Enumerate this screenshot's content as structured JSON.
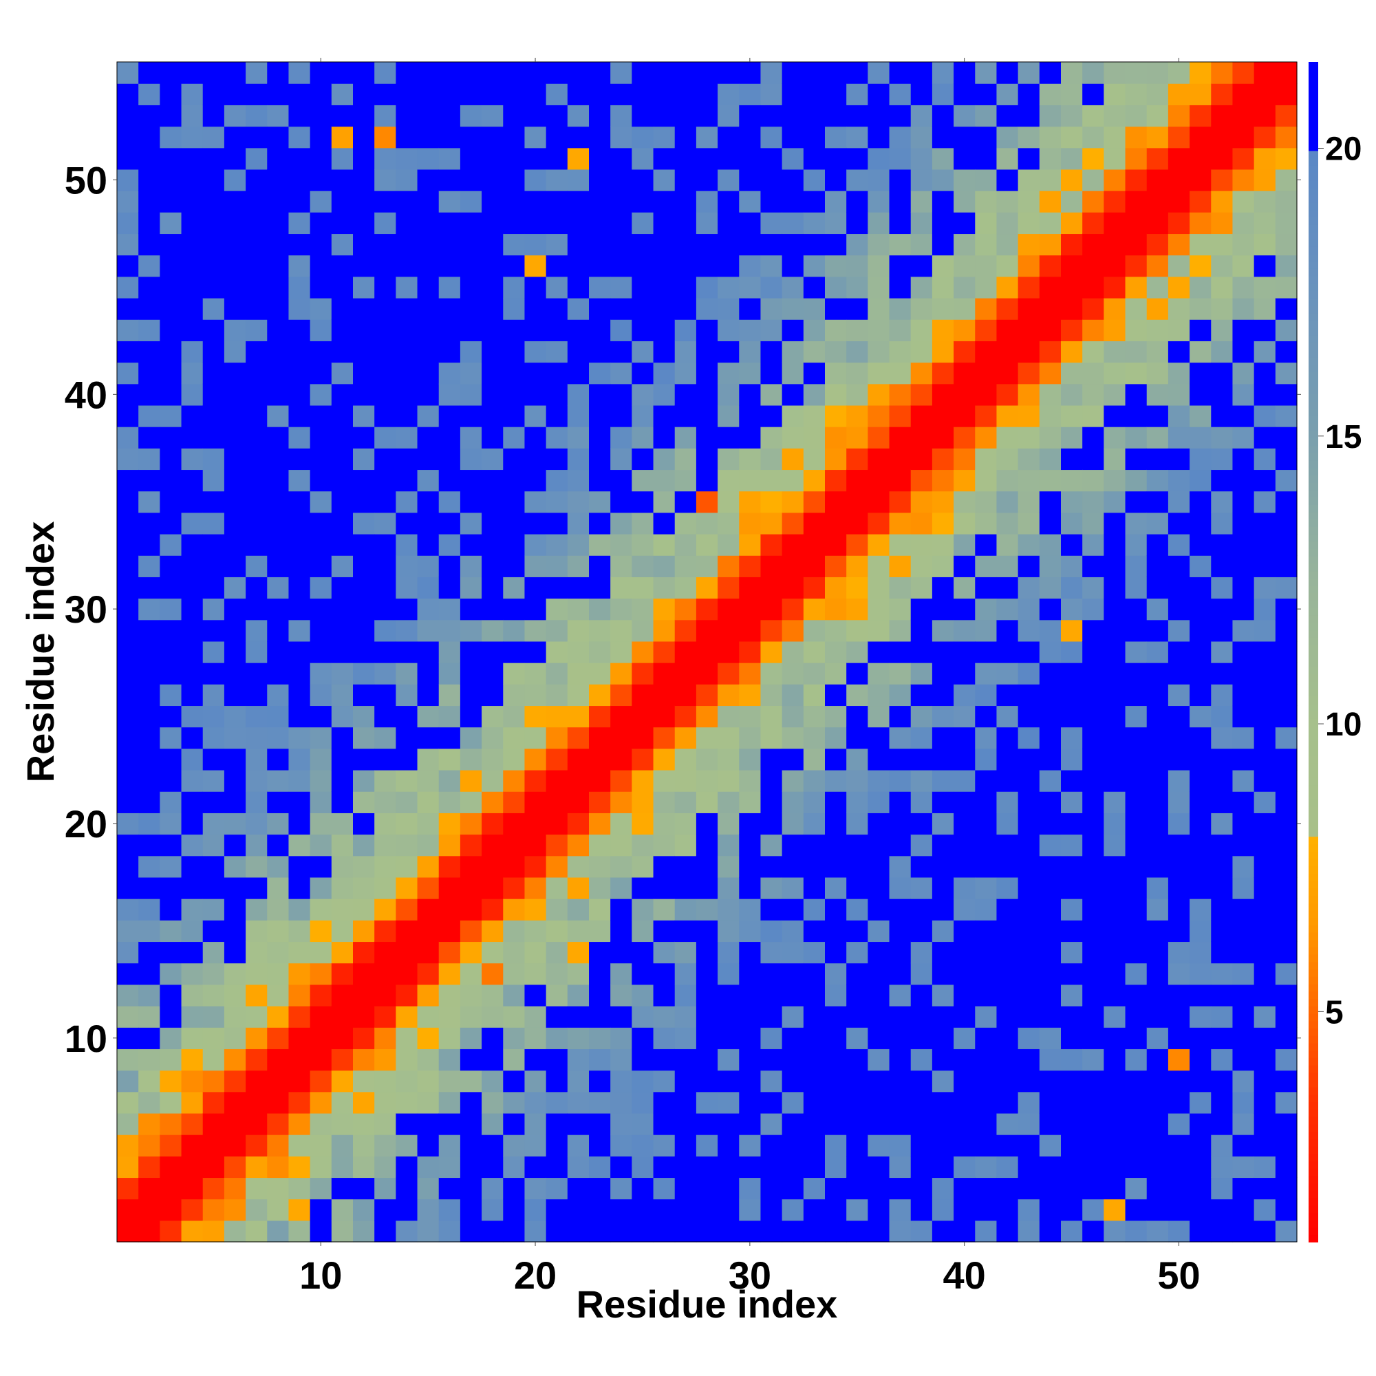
{
  "chart_data": {
    "type": "heatmap",
    "title": "",
    "xlabel": "Residue index",
    "ylabel": "Residue index",
    "n_residues": 55,
    "xlim": [
      1,
      55
    ],
    "ylim": [
      1,
      55
    ],
    "x_ticks": [
      10,
      20,
      30,
      40,
      50
    ],
    "y_ticks": [
      10,
      20,
      30,
      40,
      50
    ],
    "colorbar": {
      "ticks": [
        5,
        10,
        15,
        20
      ],
      "range": [
        1,
        21.5
      ],
      "stops": [
        {
          "value": 1.0,
          "color": "#ff0000"
        },
        {
          "value": 3.5,
          "color": "#ff3300"
        },
        {
          "value": 5.0,
          "color": "#ff6600"
        },
        {
          "value": 6.5,
          "color": "#ff9900"
        },
        {
          "value": 8.0,
          "color": "#ffb000"
        },
        {
          "value": 8.01,
          "color": "#a8c089"
        },
        {
          "value": 10.0,
          "color": "#a6c08c"
        },
        {
          "value": 12.5,
          "color": "#98b49a"
        },
        {
          "value": 15.0,
          "color": "#7a9fae"
        },
        {
          "value": 17.5,
          "color": "#6a93bd"
        },
        {
          "value": 20.0,
          "color": "#5a87c6"
        },
        {
          "value": 20.01,
          "color": "#0000ff"
        },
        {
          "value": 21.5,
          "color": "#0000ff"
        }
      ]
    },
    "grid": false,
    "cell_pattern": {
      "description": "symmetric residue distance map",
      "diagonal_value": 1.0,
      "base_profile": [
        1,
        1,
        3.5,
        6.5,
        9,
        10,
        11,
        12,
        13,
        14,
        15,
        16,
        17,
        18,
        19,
        19.5,
        20,
        20.5
      ],
      "far_value": 21,
      "pinned_cells": [
        [
          47,
          2,
          7.5
        ],
        [
          13,
          52,
          6
        ],
        [
          9,
          2,
          7.5
        ],
        [
          3,
          8,
          7.5
        ],
        [
          11,
          52,
          7
        ],
        [
          22,
          51,
          7.5
        ],
        [
          18,
          13,
          5.5
        ],
        [
          22,
          14,
          7.5
        ],
        [
          28,
          35,
          4.5
        ],
        [
          20,
          46,
          7.5
        ],
        [
          50,
          9,
          6
        ],
        [
          45,
          29,
          7.5
        ]
      ]
    }
  }
}
